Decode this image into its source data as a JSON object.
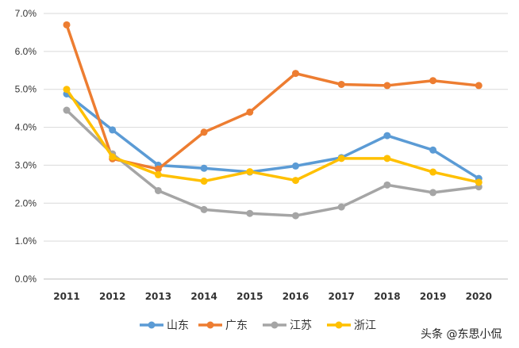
{
  "chart_data": {
    "type": "line",
    "title": "",
    "xlabel": "",
    "ylabel": "",
    "categories": [
      "2011",
      "2012",
      "2013",
      "2014",
      "2015",
      "2016",
      "2017",
      "2018",
      "2019",
      "2020"
    ],
    "ylim": [
      0,
      7
    ],
    "yticks": [
      "0.0%",
      "1.0%",
      "2.0%",
      "3.0%",
      "4.0%",
      "5.0%",
      "6.0%",
      "7.0%"
    ],
    "grid": "horizontal",
    "legend_position": "bottom",
    "series": [
      {
        "name": "山东",
        "color": "#5B9BD5",
        "values": [
          4.88,
          3.93,
          3.0,
          2.92,
          2.82,
          2.98,
          3.2,
          3.78,
          3.4,
          2.65
        ]
      },
      {
        "name": "广东",
        "color": "#ED7D31",
        "values": [
          6.7,
          3.17,
          2.9,
          3.87,
          4.4,
          5.42,
          5.13,
          5.1,
          5.23,
          5.1
        ]
      },
      {
        "name": "江苏",
        "color": "#A5A5A5",
        "values": [
          4.45,
          3.3,
          2.33,
          1.83,
          1.73,
          1.67,
          1.9,
          2.48,
          2.28,
          2.43
        ]
      },
      {
        "name": "浙江",
        "color": "#FFC000",
        "values": [
          5.0,
          3.22,
          2.75,
          2.58,
          2.83,
          2.6,
          3.18,
          3.18,
          2.82,
          2.55
        ]
      }
    ]
  },
  "watermark": "头条 @东思小侃"
}
